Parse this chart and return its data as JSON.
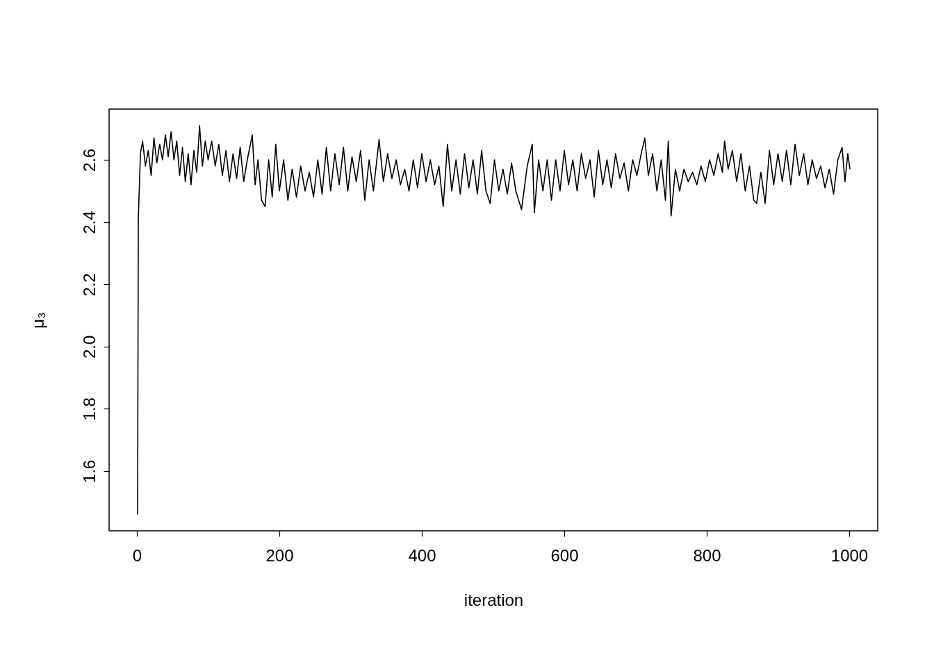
{
  "chart_data": {
    "type": "line",
    "xlabel": "iteration",
    "ylabel": "μ₃",
    "xlim": [
      -39,
      1040
    ],
    "ylim": [
      1.408,
      2.763
    ],
    "xticks": [
      0,
      200,
      400,
      600,
      800,
      1000
    ],
    "yticks": [
      1.6,
      1.8,
      {
        "value": 2.0,
        "label": "2.0"
      },
      2.2,
      2.4,
      2.6
    ],
    "grid": false,
    "line_style": "solid",
    "marker": "none",
    "series": [
      {
        "color": "#000000",
        "x": [
          1,
          2,
          5,
          8,
          12,
          16,
          20,
          24,
          28,
          32,
          36,
          40,
          44,
          48,
          52,
          56,
          60,
          64,
          68,
          72,
          76,
          80,
          84,
          88,
          92,
          96,
          100,
          105,
          110,
          115,
          120,
          125,
          130,
          135,
          140,
          145,
          150,
          155,
          162,
          166,
          170,
          175,
          180,
          185,
          190,
          195,
          200,
          206,
          212,
          218,
          224,
          230,
          236,
          242,
          248,
          254,
          260,
          266,
          272,
          278,
          284,
          290,
          296,
          302,
          308,
          314,
          320,
          326,
          332,
          340,
          346,
          352,
          358,
          364,
          370,
          376,
          382,
          388,
          394,
          400,
          406,
          412,
          418,
          424,
          430,
          436,
          442,
          448,
          454,
          460,
          466,
          472,
          478,
          484,
          490,
          496,
          502,
          508,
          514,
          520,
          526,
          532,
          540,
          548,
          555,
          558,
          564,
          570,
          576,
          582,
          588,
          594,
          600,
          606,
          612,
          618,
          624,
          630,
          636,
          642,
          648,
          654,
          660,
          666,
          672,
          678,
          684,
          690,
          696,
          702,
          708,
          713,
          718,
          724,
          730,
          736,
          742,
          746,
          750,
          756,
          762,
          768,
          774,
          780,
          786,
          792,
          798,
          804,
          810,
          816,
          822,
          825,
          830,
          836,
          842,
          848,
          854,
          860,
          866,
          870,
          876,
          882,
          888,
          894,
          900,
          906,
          912,
          918,
          924,
          930,
          936,
          942,
          948,
          954,
          960,
          966,
          972,
          978,
          984,
          990,
          994,
          998,
          1001
        ],
        "values": [
          1.46,
          2.41,
          2.62,
          2.66,
          2.58,
          2.63,
          2.55,
          2.67,
          2.59,
          2.65,
          2.6,
          2.68,
          2.61,
          2.69,
          2.6,
          2.66,
          2.55,
          2.64,
          2.53,
          2.62,
          2.52,
          2.63,
          2.56,
          2.71,
          2.58,
          2.66,
          2.6,
          2.66,
          2.58,
          2.65,
          2.55,
          2.63,
          2.53,
          2.62,
          2.54,
          2.64,
          2.53,
          2.6,
          2.68,
          2.52,
          2.6,
          2.47,
          2.45,
          2.6,
          2.48,
          2.65,
          2.5,
          2.6,
          2.47,
          2.57,
          2.48,
          2.58,
          2.5,
          2.56,
          2.48,
          2.6,
          2.49,
          2.64,
          2.5,
          2.62,
          2.52,
          2.64,
          2.5,
          2.61,
          2.53,
          2.63,
          2.47,
          2.6,
          2.5,
          2.665,
          2.53,
          2.62,
          2.54,
          2.6,
          2.52,
          2.57,
          2.5,
          2.6,
          2.51,
          2.62,
          2.53,
          2.6,
          2.52,
          2.58,
          2.45,
          2.65,
          2.5,
          2.6,
          2.49,
          2.62,
          2.51,
          2.6,
          2.49,
          2.63,
          2.5,
          2.46,
          2.6,
          2.5,
          2.57,
          2.49,
          2.59,
          2.5,
          2.44,
          2.58,
          2.65,
          2.43,
          2.6,
          2.5,
          2.6,
          2.47,
          2.6,
          2.5,
          2.63,
          2.52,
          2.6,
          2.5,
          2.62,
          2.54,
          2.6,
          2.48,
          2.63,
          2.52,
          2.6,
          2.51,
          2.62,
          2.54,
          2.59,
          2.5,
          2.6,
          2.55,
          2.62,
          2.67,
          2.55,
          2.62,
          2.5,
          2.6,
          2.47,
          2.66,
          2.42,
          2.57,
          2.5,
          2.57,
          2.53,
          2.56,
          2.52,
          2.58,
          2.53,
          2.6,
          2.55,
          2.62,
          2.56,
          2.66,
          2.57,
          2.63,
          2.53,
          2.62,
          2.5,
          2.58,
          2.47,
          2.46,
          2.56,
          2.46,
          2.63,
          2.52,
          2.62,
          2.53,
          2.63,
          2.52,
          2.65,
          2.55,
          2.62,
          2.52,
          2.6,
          2.54,
          2.58,
          2.51,
          2.57,
          2.49,
          2.6,
          2.64,
          2.53,
          2.62,
          2.57
        ]
      }
    ]
  }
}
